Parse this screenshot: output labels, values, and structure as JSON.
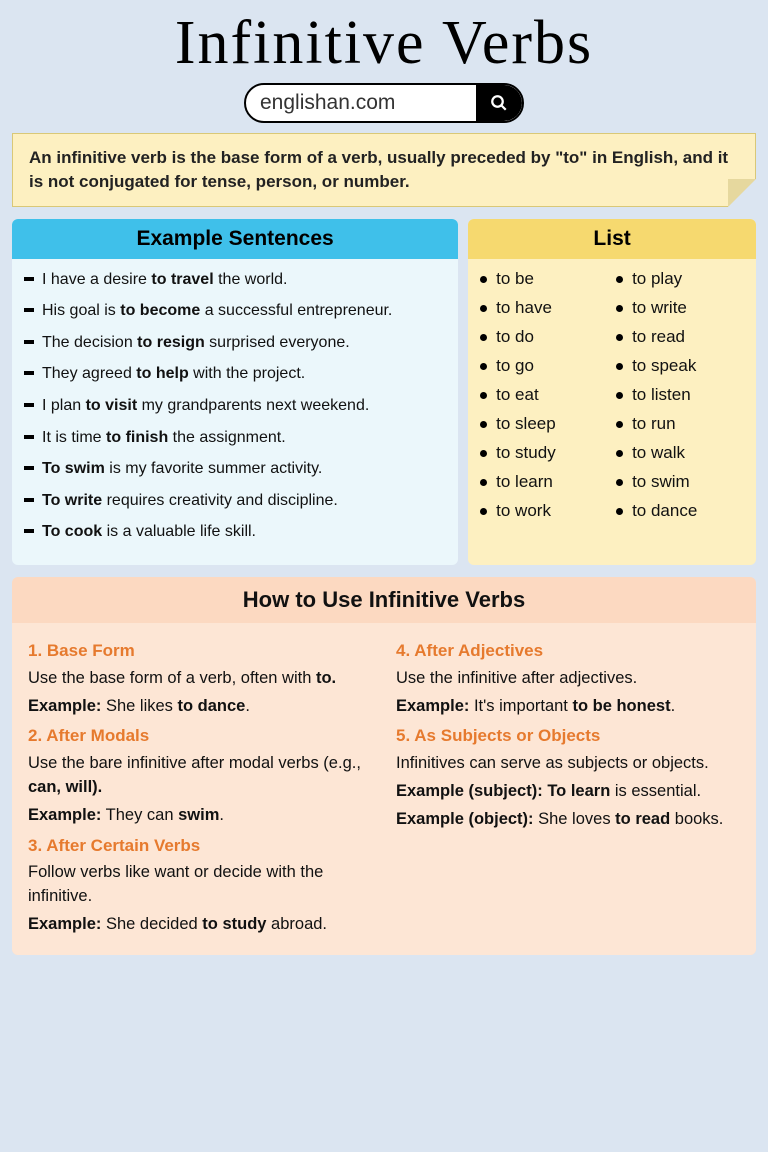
{
  "title": "Infinitive Verbs",
  "site": "englishan.com",
  "definition_parts": [
    "An infinitive verb is the base form of a verb, usually preceded by \"to\" in English, and it is not conjugated for tense, person, or number."
  ],
  "examples": {
    "header": "Example Sentences",
    "items": [
      {
        "pre": "I have a desire ",
        "bold": "to travel",
        "post": " the world."
      },
      {
        "pre": "His goal is ",
        "bold": "to become",
        "post": " a successful entrepreneur."
      },
      {
        "pre": "The decision ",
        "bold": "to resign",
        "post": " surprised everyone."
      },
      {
        "pre": "They agreed ",
        "bold": "to help",
        "post": " with the project."
      },
      {
        "pre": "I plan ",
        "bold": "to visit",
        "post": " my grandparents next weekend."
      },
      {
        "pre": "It is time ",
        "bold": "to finish",
        "post": " the assignment."
      },
      {
        "pre": "",
        "bold": "To swim",
        "post": " is my favorite summer activity."
      },
      {
        "pre": "",
        "bold": "To write",
        "post": " requires creativity and discipline."
      },
      {
        "pre": "",
        "bold": "To cook",
        "post": " is a valuable life skill."
      }
    ]
  },
  "list": {
    "header": "List",
    "col1": [
      "to be",
      "to have",
      "to do",
      "to go",
      "to eat",
      "to sleep",
      "to study",
      "to learn",
      "to work"
    ],
    "col2": [
      "to play",
      "to write",
      "to read",
      "to speak",
      "to listen",
      "to run",
      "to walk",
      "to swim",
      "to dance"
    ]
  },
  "howto": {
    "title": "How to Use Infinitive Verbs",
    "sections": [
      {
        "h": "1. Base Form",
        "body": "Use the base form of a verb, often with ",
        "body_bold": "to.",
        "ex_label": "Example:",
        "ex_pre": " She likes ",
        "ex_bold": "to dance",
        "ex_post": "."
      },
      {
        "h": "2. After Modals",
        "body": "Use the bare infinitive after modal verbs (e.g., ",
        "body_bold": "can, will).",
        "ex_label": "Example:",
        "ex_pre": " They can ",
        "ex_bold": "swim",
        "ex_post": "."
      },
      {
        "h": "3. After Certain Verbs",
        "body": "Follow verbs like want or decide with the infinitive.",
        "body_bold": "",
        "ex_label": "Example:",
        "ex_pre": " She decided ",
        "ex_bold": "to study",
        "ex_post": " abroad."
      },
      {
        "h": "4. After Adjectives",
        "body": "Use the infinitive after adjectives.",
        "body_bold": "",
        "ex_label": "Example:",
        "ex_pre": " It's important ",
        "ex_bold": "to be honest",
        "ex_post": "."
      },
      {
        "h": "5. As Subjects or Objects",
        "body": "Infinitives can serve as subjects or objects.",
        "body_bold": "",
        "ex_label": "Example (subject):",
        "ex_pre": " ",
        "ex_bold": "To learn",
        "ex_post": " is essential.",
        "ex2_label": "Example (object):",
        "ex2_pre": " She loves ",
        "ex2_bold": "to read",
        "ex2_post": " books."
      }
    ]
  },
  "colors": {
    "page_bg": "#dbe5f1",
    "def_bg": "#fdf0c1",
    "blue_header": "#3fc0ea",
    "yellow_header": "#f6d96f",
    "examples_bg": "#ebf7fb",
    "list_bg": "#fdf0c1",
    "howto_bg": "#fcd9c1",
    "howto_body_bg": "#fde6d5",
    "accent_orange": "#e67a2e"
  }
}
